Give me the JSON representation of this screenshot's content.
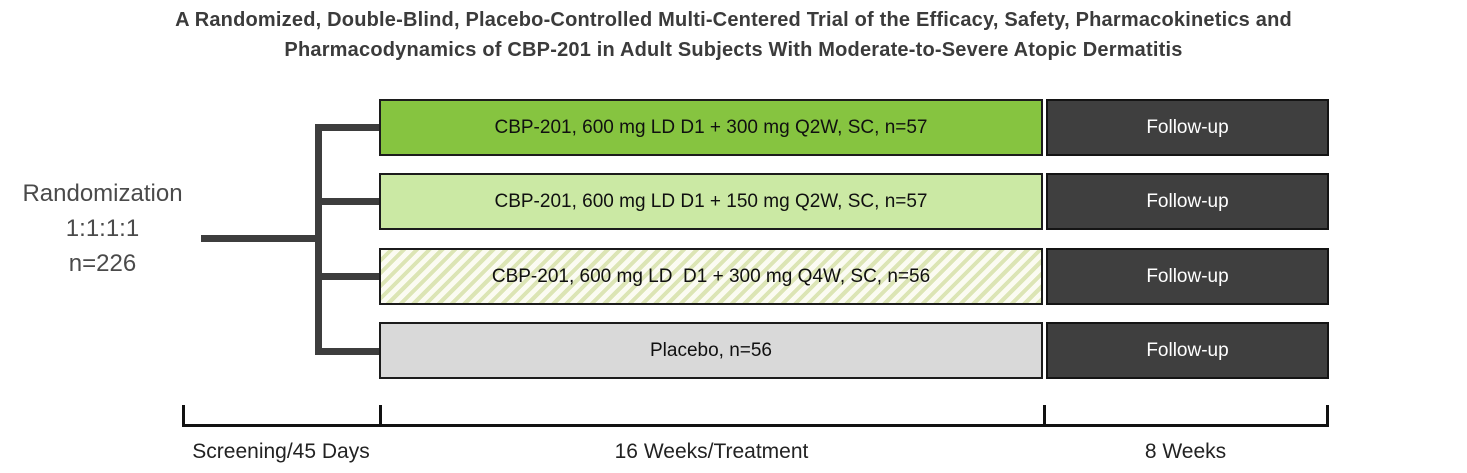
{
  "header": {
    "title_line1": "A Randomized, Double-Blind, Placebo-Controlled Multi-Centered Trial of the Efficacy, Safety, Pharmacokinetics and",
    "title_line2": "Pharmacodynamics of CBP-201 in Adult Subjects With Moderate-to-Severe Atopic Dermatitis"
  },
  "randomization": {
    "line1": "Randomization",
    "line2": "1:1:1:1",
    "line3": "n=226"
  },
  "arms": [
    {
      "label": "CBP-201, 600 mg LD D1 + 300 mg Q2W, SC, n=57",
      "followup_label": "Follow-up",
      "fill": {
        "type": "solid",
        "color": "#86C440"
      }
    },
    {
      "label": "CBP-201, 600 mg LD D1 + 150 mg Q2W, SC, n=57",
      "followup_label": "Follow-up",
      "fill": {
        "type": "solid",
        "color": "#CBE9A4"
      }
    },
    {
      "label": "CBP-201, 600 mg LD  D1 + 300 mg Q4W, SC, n=56",
      "followup_label": "Follow-up",
      "fill": {
        "type": "hatch",
        "base": "#FBFBF2",
        "stripe": "#DCE5B5"
      }
    },
    {
      "label": "Placebo, n=56",
      "followup_label": "Follow-up",
      "fill": {
        "type": "solid",
        "color": "#D9D9D9"
      }
    }
  ],
  "colors": {
    "followup_bg": "#3F3F3F",
    "followup_text": "#FFFFFF",
    "connector_line": "#3D3D3D",
    "bar_border": "#1C1C1C",
    "axis": "#111111",
    "title_text": "#3B3B3B"
  },
  "timeline": {
    "segments": [
      {
        "label": "Screening/45 Days"
      },
      {
        "label": "16 Weeks/Treatment"
      },
      {
        "label": "8 Weeks"
      }
    ]
  }
}
